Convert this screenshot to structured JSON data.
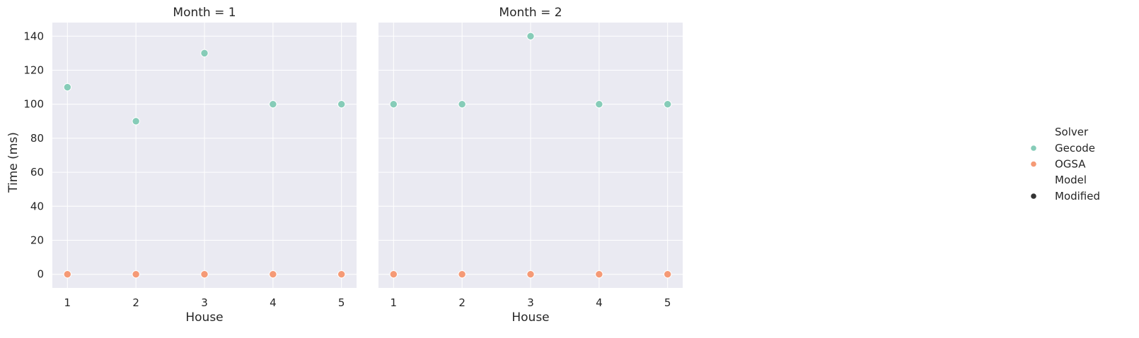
{
  "chart_data": {
    "type": "scatter",
    "ylabel": "Time (ms)",
    "xlabel": "House",
    "x": [
      1,
      2,
      3,
      4,
      5
    ],
    "xticks": [
      "1",
      "2",
      "3",
      "4",
      "5"
    ],
    "ylim": [
      -8,
      148
    ],
    "yticks": [
      0,
      20,
      40,
      60,
      80,
      100,
      120,
      140
    ],
    "grid": true,
    "legend_position": "right",
    "colors": {
      "Gecode": "#86ccb8",
      "OGSA": "#f59a76",
      "Model": "#333333",
      "panel_bg": "#eaeaf2",
      "grid": "#ffffff"
    },
    "panels": [
      {
        "title": "Month = 1",
        "series": [
          {
            "name": "Gecode",
            "values": [
              110,
              90,
              130,
              100,
              100
            ]
          },
          {
            "name": "OGSA",
            "values": [
              0,
              0,
              0,
              0,
              0
            ]
          }
        ]
      },
      {
        "title": "Month = 2",
        "series": [
          {
            "name": "Gecode",
            "values": [
              100,
              100,
              140,
              100,
              100
            ]
          },
          {
            "name": "OGSA",
            "values": [
              0,
              0,
              0,
              0,
              0
            ]
          }
        ]
      }
    ],
    "legend": {
      "groups": [
        {
          "title": "Solver",
          "entries": [
            "Gecode",
            "OGSA"
          ]
        },
        {
          "title": "Model",
          "entries": [
            "Modified"
          ]
        }
      ]
    }
  }
}
